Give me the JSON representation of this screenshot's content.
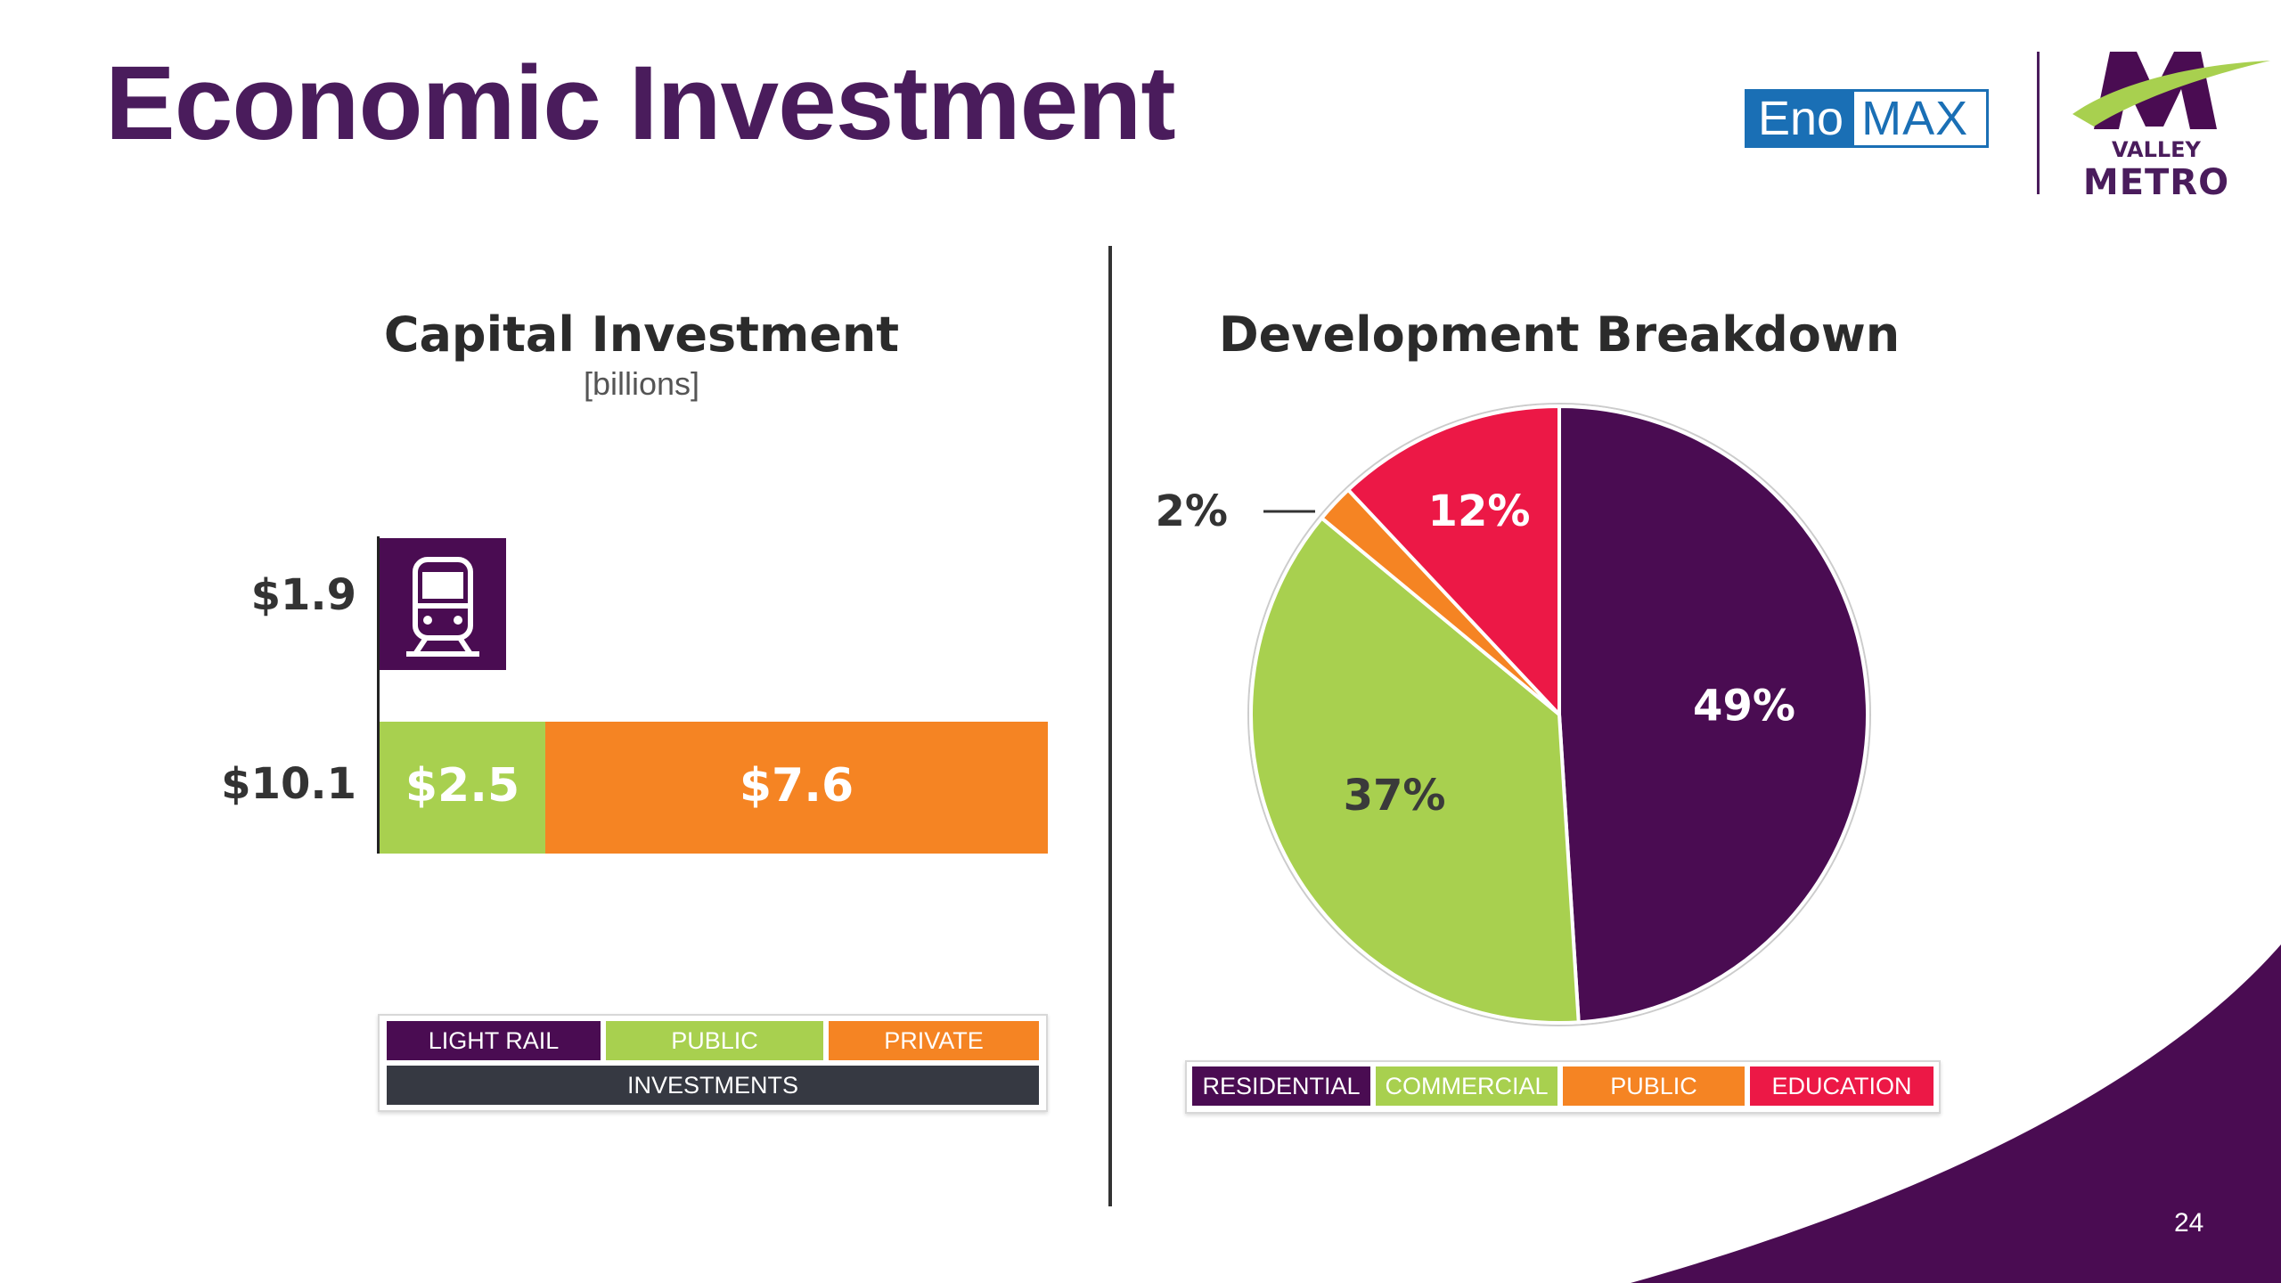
{
  "title": "Economic Investment",
  "logos": {
    "eno_left": "Eno",
    "eno_right": "MAX",
    "valley": "VALLEY",
    "metro": "METRO"
  },
  "page_number": "24",
  "colors": {
    "purple": "#4a0c52",
    "green": "#a8d04f",
    "orange": "#f58423",
    "red": "#ec1846",
    "dark": "#363942"
  },
  "chart_data": [
    {
      "type": "bar",
      "title": "Capital Investment",
      "subtitle": "[billions]",
      "rows": [
        {
          "label": "$1.9",
          "segments": [
            {
              "name": "LIGHT RAIL",
              "value": 1.9,
              "label": ""
            }
          ]
        },
        {
          "label": "$10.1",
          "segments": [
            {
              "name": "PUBLIC",
              "value": 2.5,
              "label": "$2.5"
            },
            {
              "name": "PRIVATE",
              "value": 7.6,
              "label": "$7.6"
            }
          ]
        }
      ],
      "legend": {
        "items": [
          "LIGHT RAIL",
          "PUBLIC",
          "PRIVATE"
        ],
        "group": "INVESTMENTS"
      }
    },
    {
      "type": "pie",
      "title": "Development Breakdown",
      "slices": [
        {
          "name": "RESIDENTIAL",
          "value": 49,
          "label": "49%"
        },
        {
          "name": "COMMERCIAL",
          "value": 37,
          "label": "37%"
        },
        {
          "name": "PUBLIC",
          "value": 2,
          "label": "2%"
        },
        {
          "name": "EDUCATION",
          "value": 12,
          "label": "12%"
        }
      ],
      "legend": [
        "RESIDENTIAL",
        "COMMERCIAL",
        "PUBLIC",
        "EDUCATION"
      ]
    }
  ]
}
